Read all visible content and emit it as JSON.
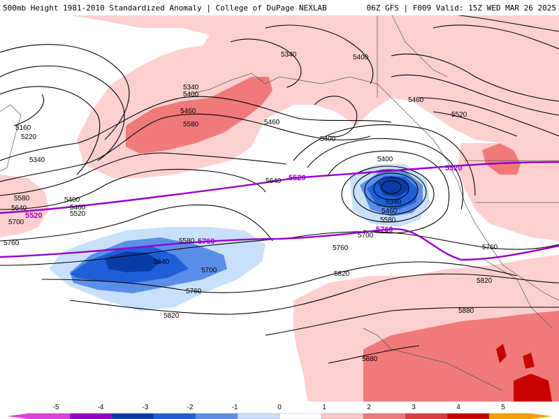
{
  "header": {
    "left_title": "500mb Height 1981-2010 Standardized Anomaly | College of DuPage NEXLAB",
    "right_title": "06Z GFS | F009 Valid: 15Z WED MAR 26 2025"
  },
  "colorbar": {
    "ticks": [
      "-5",
      "-4",
      "-3",
      "-2",
      "-1",
      "0",
      "1",
      "2",
      "3",
      "4",
      "5"
    ],
    "colors": [
      "#e040e0",
      "#9400c8",
      "#0a3ca8",
      "#1e5fd8",
      "#5a8ee8",
      "#c8e0fa",
      "#ffffff",
      "#fcc8c8",
      "#f07a7a",
      "#e03a3a",
      "#c80000",
      "#f5a000"
    ]
  },
  "height_labels": [
    "5340",
    "5400",
    "5340",
    "5400",
    "5460",
    "5520",
    "5580",
    "5460",
    "5400",
    "5160",
    "5220",
    "5340",
    "5460",
    "5520",
    "5400",
    "5460",
    "5520",
    "5580",
    "5640",
    "5700",
    "5760",
    "5400",
    "5340",
    "5460",
    "5580",
    "5640",
    "5580",
    "5640",
    "5700",
    "5760",
    "5820",
    "5700",
    "5760",
    "5820",
    "5760",
    "5820",
    "5880",
    "5880"
  ],
  "purple_labels": [
    "5520",
    "5520",
    "5520",
    "5760",
    "5760"
  ],
  "colors": {
    "purple_contour": "#9a00c8",
    "height_contour": "#000000"
  }
}
